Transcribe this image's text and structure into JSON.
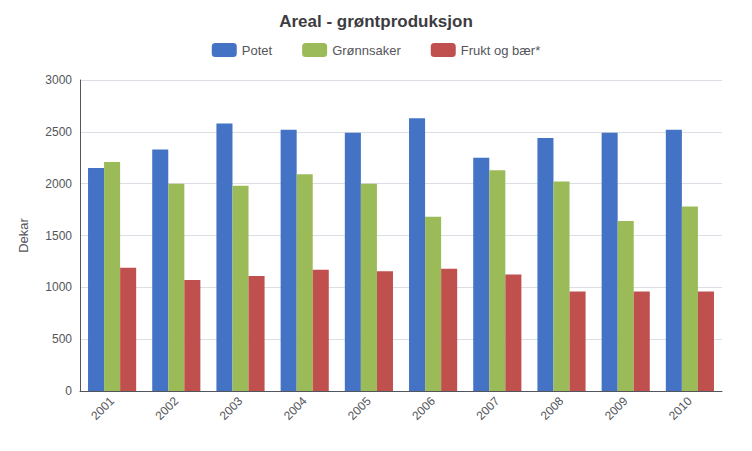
{
  "chart_data": {
    "type": "bar",
    "title": "Areal - grøntproduksjon",
    "ylabel": "Dekar",
    "categories": [
      "2001",
      "2002",
      "2003",
      "2004",
      "2005",
      "2006",
      "2007",
      "2008",
      "2009",
      "2010"
    ],
    "series": [
      {
        "name": "Potet",
        "color": "#4472C4",
        "values": [
          2150,
          2330,
          2580,
          2520,
          2490,
          2630,
          2250,
          2440,
          2490,
          2520
        ]
      },
      {
        "name": "Grønnsaker",
        "color": "#9BBB59",
        "values": [
          2210,
          2000,
          1980,
          2090,
          2000,
          1680,
          2130,
          2020,
          1640,
          1780
        ]
      },
      {
        "name": "Frukt og bær*",
        "color": "#C0504D",
        "values": [
          1190,
          1070,
          1110,
          1170,
          1155,
          1180,
          1125,
          960,
          960,
          960
        ]
      }
    ],
    "ylim": [
      0,
      3000
    ],
    "yticks": [
      0,
      500,
      1000,
      1500,
      2000,
      2500,
      3000
    ],
    "grid": true,
    "legend": "top"
  }
}
